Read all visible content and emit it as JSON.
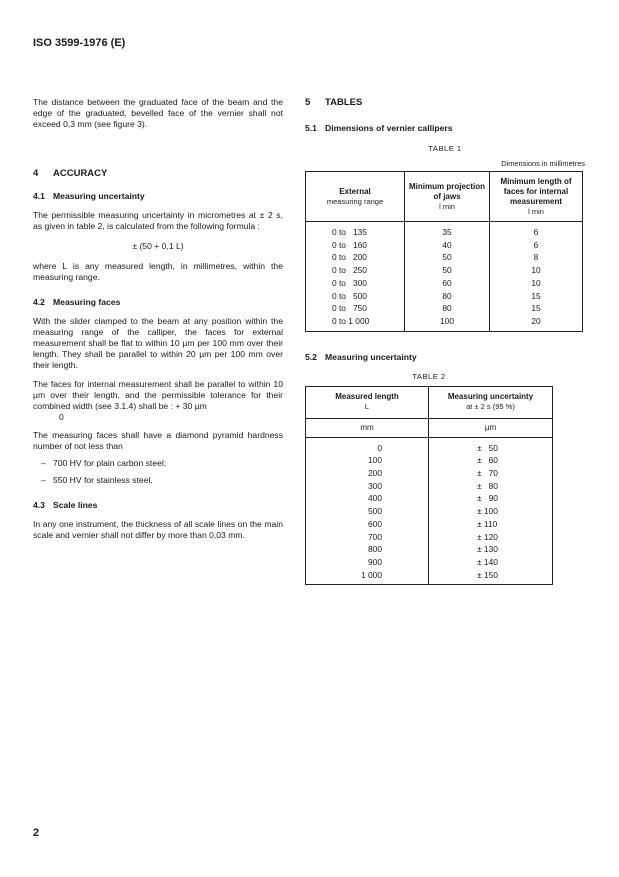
{
  "header": {
    "title": "ISO 3599-1976 (E)"
  },
  "left": {
    "intro": "The distance between the graduated face of the beam and the edge of the graduated, bevelled face of the vernier shall not exceed 0,3 mm (see figure 3).",
    "s4": {
      "num": "4",
      "title": "ACCURACY"
    },
    "s41": {
      "num": "4.1",
      "title": "Measuring uncertainty",
      "p1": "The permissible measuring uncertainty in micrometres at ± 2 s, as given in table 2, is calculated from the following formula :",
      "formula": "± (50 + 0,1 L)",
      "p2": "where L is any measured length, in millimetres, within the measuring range."
    },
    "s42": {
      "num": "4.2",
      "title": "Measuring faces",
      "p1": "With the slider clamped to the beam at any position within the measuring range of the calliper, the faces for external measurement shall be flat to within 10 µm per 100 mm over their length. They shall be parallel to within 20 µm per 100 mm over their length.",
      "p2": "The faces for internal measurement shall be parallel to within 10 µm over their length, and the permissible tolerance for their combined width (see 3.1.4) shall be : + 30 µm",
      "p2_lower": "0",
      "p3": "The measuring faces shall have a diamond pyramid hardness number of not less than",
      "bullets": [
        "700 HV for plain carbon steel;",
        "550 HV for stainless steel."
      ]
    },
    "s43": {
      "num": "4.3",
      "title": "Scale lines",
      "p1": "In any one instrument, the thickness of all scale lines on the main scale and vernier shall not differ by more than 0,03 mm."
    }
  },
  "right": {
    "s5": {
      "num": "5",
      "title": "TABLES"
    },
    "s51": {
      "num": "5.1",
      "title": "Dimensions of vernier callipers"
    },
    "table1": {
      "caption": "TABLE 1",
      "units": "Dimensions in millimetres",
      "headers": [
        {
          "main": "External",
          "sub": "measuring range"
        },
        {
          "main": "Minimum projection of jaws",
          "sub": "l min"
        },
        {
          "main": "Minimum length of faces for internal measurement",
          "sub": "l min"
        }
      ],
      "rows": [
        [
          "0 to   135",
          "35",
          "6"
        ],
        [
          "0 to   160",
          "40",
          "6"
        ],
        [
          "0 to   200",
          "50",
          "8"
        ],
        [
          "0 to   250",
          "50",
          "10"
        ],
        [
          "0 to   300",
          "60",
          "10"
        ],
        [
          "0 to   500",
          "80",
          "15"
        ],
        [
          "0 to   750",
          "80",
          "15"
        ],
        [
          "0 to 1 000",
          "100",
          "20"
        ]
      ]
    },
    "s52": {
      "num": "5.2",
      "title": "Measuring uncertainty"
    },
    "table2": {
      "caption": "TABLE 2",
      "headers": [
        {
          "main": "Measured length",
          "sub": "L"
        },
        {
          "main": "Measuring uncertainty",
          "sub": "at ± 2 s (95 %)"
        }
      ],
      "units": [
        "mm",
        "µm"
      ],
      "rows": [
        [
          "0",
          "±   50"
        ],
        [
          "100",
          "±   60"
        ],
        [
          "200",
          "±   70"
        ],
        [
          "300",
          "±   80"
        ],
        [
          "400",
          "±   90"
        ],
        [
          "500",
          "± 100"
        ],
        [
          "600",
          "± 110"
        ],
        [
          "700",
          "± 120"
        ],
        [
          "800",
          "± 130"
        ],
        [
          "900",
          "± 140"
        ],
        [
          "1 000",
          "± 150"
        ]
      ]
    }
  },
  "footer": {
    "page_number": "2"
  }
}
